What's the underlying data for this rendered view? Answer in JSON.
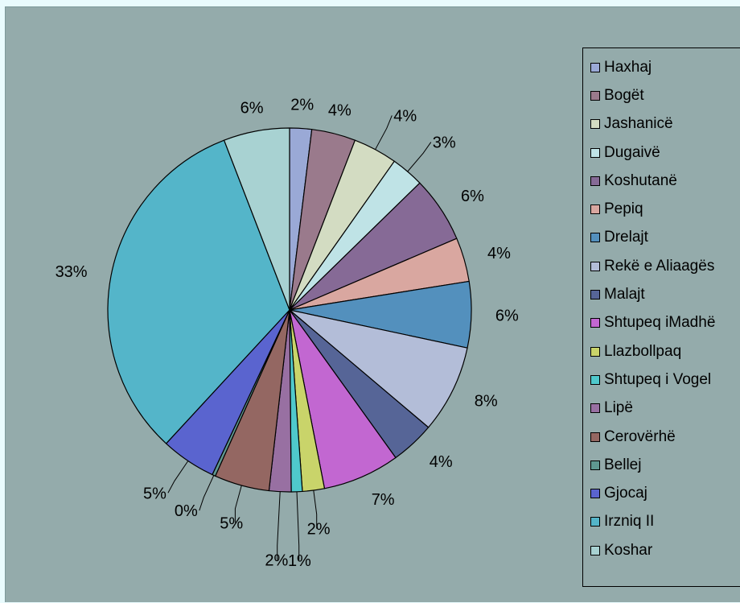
{
  "chart_data": {
    "type": "pie",
    "title": "",
    "legend_position": "right",
    "slices": [
      {
        "name": "Haxhaj",
        "value": 2,
        "label": "2%",
        "color": "#9aa9d6"
      },
      {
        "name": "Bogët",
        "value": 4,
        "label": "4%",
        "color": "#9a7a8c"
      },
      {
        "name": "Jashanicë",
        "value": 4,
        "label": "4%",
        "color": "#d3dcc2"
      },
      {
        "name": "Dugaivë",
        "value": 3,
        "label": "3%",
        "color": "#bfe3e6"
      },
      {
        "name": "Koshutanë",
        "value": 6,
        "label": "6%",
        "color": "#866a96"
      },
      {
        "name": "Pepiq",
        "value": 4,
        "label": "4%",
        "color": "#d9a7a0"
      },
      {
        "name": "Drelajt",
        "value": 6,
        "label": "6%",
        "color": "#5390bd"
      },
      {
        "name": "Rekë e Aliaagës",
        "value": 8,
        "label": "8%",
        "color": "#b3bdd8"
      },
      {
        "name": "Malajt",
        "value": 4,
        "label": "4%",
        "color": "#566597"
      },
      {
        "name": "Shtupeq iMadhë",
        "value": 7,
        "label": "7%",
        "color": "#c267d1"
      },
      {
        "name": "Llazbollpaq",
        "value": 2,
        "label": "2%",
        "color": "#c9d46a"
      },
      {
        "name": "Shtupeq i Vogel",
        "value": 1,
        "label": "1%",
        "color": "#4fc9cc"
      },
      {
        "name": "Lipë",
        "value": 2,
        "label": "2%",
        "color": "#9870a2"
      },
      {
        "name": "Cerovërhë",
        "value": 5,
        "label": "5%",
        "color": "#946762"
      },
      {
        "name": "Bellej",
        "value": 0.3,
        "label": "0%",
        "color": "#5f9891"
      },
      {
        "name": "Gjocaj",
        "value": 5,
        "label": "5%",
        "color": "#5a64cf"
      },
      {
        "name": "Irzniq II",
        "value": 33,
        "label": "33%",
        "color": "#54b5c9"
      },
      {
        "name": "Koshar",
        "value": 6,
        "label": "6%",
        "color": "#a8d2d2"
      }
    ]
  }
}
